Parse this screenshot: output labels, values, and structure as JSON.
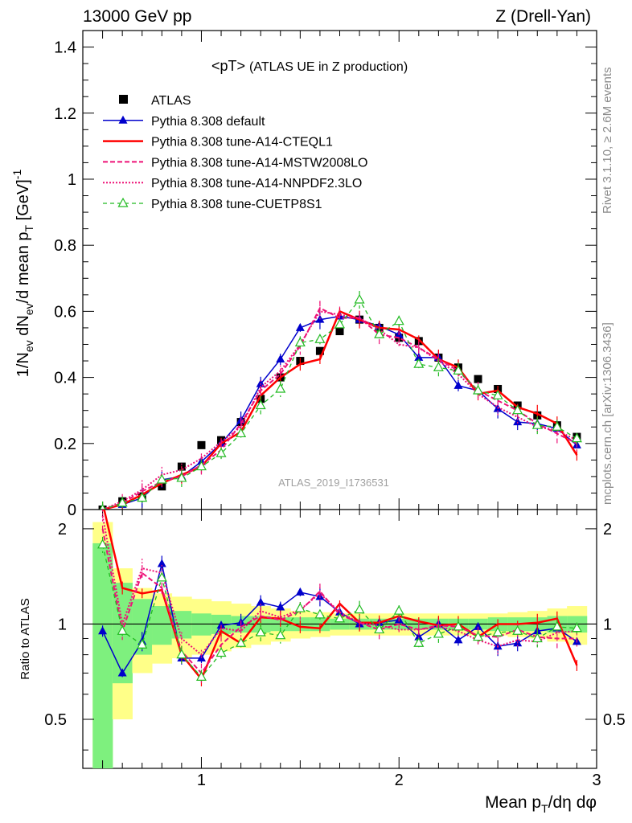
{
  "header": {
    "left": "13000 GeV pp",
    "right": "Z (Drell-Yan)"
  },
  "side_labels": {
    "top": "Rivet 3.1.10, ≥ 2.6M events",
    "bottom": "mcplots.cern.ch [arXiv:1306.3436]"
  },
  "analysis_id": "ATLAS_2019_I1736531",
  "colors": {
    "data": "#000000",
    "default": "#0000cc",
    "a14_cteql1": "#ff0000",
    "a14_pink": "#ee1177",
    "cuetp8s1": "#22bb22",
    "band_green": "#7ef07e",
    "band_yellow": "#ffff88"
  },
  "chart_data": [
    {
      "type": "line",
      "title_main": "<pT>",
      "title_sub": "(ATLAS UE in Z production)",
      "ylabel": "1/N_ev dN_ev/d mean p_T [GeV]^-1",
      "xlim": [
        0.4,
        3.0
      ],
      "ylim": [
        0,
        1.45
      ],
      "yticks": [
        "0",
        "0.2",
        "0.4",
        "0.6",
        "0.8",
        "1",
        "1.2",
        "1.4"
      ],
      "legend_position": "top-left",
      "x": [
        0.5,
        0.6,
        0.7,
        0.8,
        0.9,
        1.0,
        1.1,
        1.2,
        1.3,
        1.4,
        1.5,
        1.6,
        1.7,
        1.8,
        1.9,
        2.0,
        2.1,
        2.2,
        2.3,
        2.4,
        2.5,
        2.6,
        2.7,
        2.8,
        2.9
      ],
      "series": [
        {
          "name": "ATLAS",
          "style": "data",
          "values": [
            0.0,
            0.025,
            0.04,
            0.07,
            0.13,
            0.195,
            0.21,
            0.265,
            0.335,
            0.4,
            0.45,
            0.48,
            0.54,
            0.575,
            0.55,
            0.52,
            0.51,
            0.46,
            0.43,
            0.395,
            0.365,
            0.315,
            0.285,
            0.255,
            0.22
          ]
        },
        {
          "name": "Pythia 8.308 default",
          "style": "default",
          "values": [
            0.0,
            0.015,
            0.035,
            0.09,
            0.1,
            0.145,
            0.2,
            0.27,
            0.38,
            0.455,
            0.55,
            0.575,
            0.585,
            0.575,
            0.555,
            0.53,
            0.46,
            0.46,
            0.375,
            0.36,
            0.305,
            0.265,
            0.26,
            0.245,
            0.195
          ]
        },
        {
          "name": "Pythia 8.308 tune-A14-CTEQL1",
          "style": "cteql1",
          "values": [
            0.0,
            0.015,
            0.045,
            0.08,
            0.105,
            0.13,
            0.2,
            0.235,
            0.345,
            0.4,
            0.44,
            0.455,
            0.6,
            0.575,
            0.55,
            0.545,
            0.515,
            0.455,
            0.43,
            0.35,
            0.36,
            0.31,
            0.29,
            0.26,
            0.165
          ]
        },
        {
          "name": "Pythia 8.308 tune-A14-MSTW2008LO",
          "style": "mstw",
          "values": [
            0.0,
            0.02,
            0.055,
            0.085,
            0.1,
            0.135,
            0.18,
            0.26,
            0.36,
            0.41,
            0.495,
            0.61,
            0.58,
            0.58,
            0.53,
            0.52,
            0.49,
            0.455,
            0.42,
            0.36,
            0.33,
            0.3,
            0.26,
            0.23,
            0.2
          ]
        },
        {
          "name": "Pythia 8.308 tune-A14-NNPDF2.3LO",
          "style": "nnpdf",
          "values": [
            0.0,
            0.025,
            0.06,
            0.105,
            0.12,
            0.155,
            0.205,
            0.25,
            0.37,
            0.42,
            0.5,
            0.6,
            0.59,
            0.58,
            0.545,
            0.5,
            0.49,
            0.45,
            0.41,
            0.35,
            0.31,
            0.28,
            0.25,
            0.24,
            0.21
          ]
        },
        {
          "name": "Pythia 8.308 tune-CUETP8S1",
          "style": "cuetp8s1",
          "values": [
            0.0,
            0.02,
            0.035,
            0.09,
            0.095,
            0.13,
            0.17,
            0.23,
            0.315,
            0.365,
            0.505,
            0.515,
            0.56,
            0.635,
            0.53,
            0.57,
            0.44,
            0.43,
            0.42,
            0.36,
            0.345,
            0.3,
            0.255,
            0.25,
            0.215
          ]
        }
      ]
    },
    {
      "type": "line",
      "ylabel": "Ratio to ATLAS",
      "xlabel": "Mean p_T/dη dφ",
      "xlim": [
        0.4,
        3.0
      ],
      "ylim": [
        0.35,
        2.3
      ],
      "log_y": true,
      "yticks": [
        "0.5",
        "1",
        "2"
      ],
      "xticks": [
        "1",
        "2",
        "3"
      ],
      "x": [
        0.5,
        0.6,
        0.7,
        0.8,
        0.9,
        1.0,
        1.1,
        1.2,
        1.3,
        1.4,
        1.5,
        1.6,
        1.7,
        1.8,
        1.9,
        2.0,
        2.1,
        2.2,
        2.3,
        2.4,
        2.5,
        2.6,
        2.7,
        2.8,
        2.9
      ],
      "bands": {
        "stat_half_width": [
          0.8,
          0.35,
          0.2,
          0.14,
          0.1,
          0.08,
          0.07,
          0.06,
          0.06,
          0.05,
          0.05,
          0.05,
          0.04,
          0.04,
          0.04,
          0.04,
          0.04,
          0.04,
          0.04,
          0.04,
          0.05,
          0.05,
          0.05,
          0.06,
          0.06
        ],
        "total_half_width": [
          1.1,
          0.5,
          0.3,
          0.25,
          0.22,
          0.2,
          0.18,
          0.16,
          0.14,
          0.12,
          0.1,
          0.09,
          0.08,
          0.08,
          0.08,
          0.08,
          0.08,
          0.08,
          0.08,
          0.08,
          0.08,
          0.09,
          0.1,
          0.12,
          0.14
        ]
      },
      "series": [
        {
          "name": "Pythia 8.308 default",
          "style": "default",
          "values": [
            0.95,
            0.7,
            0.88,
            1.55,
            0.78,
            0.78,
            0.99,
            1.01,
            1.17,
            1.13,
            1.26,
            1.22,
            1.09,
            1.0,
            1.01,
            1.03,
            0.91,
            1.0,
            0.89,
            0.98,
            0.85,
            0.87,
            0.95,
            0.97,
            0.88
          ]
        },
        {
          "name": "Pythia 8.308 tune-A14-CTEQL1",
          "style": "cteql1",
          "values": [
            2.6,
            1.3,
            1.25,
            1.28,
            0.8,
            0.67,
            0.95,
            0.87,
            1.05,
            1.04,
            0.98,
            0.97,
            1.16,
            1.01,
            1.01,
            1.06,
            1.02,
            0.99,
            1.0,
            0.91,
            1.0,
            1.0,
            1.01,
            1.04,
            0.74
          ]
        },
        {
          "name": "Pythia 8.308 tune-A14-MSTW2008LO",
          "style": "mstw",
          "values": [
            2.0,
            0.95,
            1.45,
            1.3,
            0.82,
            0.7,
            0.86,
            0.98,
            1.06,
            1.03,
            1.1,
            1.27,
            1.07,
            1.01,
            0.96,
            1.0,
            0.96,
            0.99,
            0.98,
            0.92,
            0.91,
            0.96,
            0.91,
            0.9,
            0.9
          ]
        },
        {
          "name": "Pythia 8.308 tune-A14-NNPDF2.3LO",
          "style": "nnpdf",
          "values": [
            2.2,
            1.0,
            1.5,
            1.45,
            0.9,
            0.8,
            0.97,
            0.95,
            1.1,
            1.05,
            1.11,
            1.25,
            1.09,
            1.01,
            0.99,
            0.96,
            0.96,
            0.98,
            0.95,
            0.89,
            0.85,
            0.89,
            0.88,
            0.94,
            0.95
          ]
        },
        {
          "name": "Pythia 8.308 tune-CUETP8S1",
          "style": "cuetp8s1",
          "values": [
            1.78,
            0.95,
            0.86,
            1.4,
            0.8,
            0.68,
            0.81,
            0.87,
            0.94,
            0.92,
            1.12,
            1.07,
            1.04,
            1.11,
            0.96,
            1.1,
            0.87,
            0.93,
            0.98,
            0.91,
            0.94,
            0.95,
            0.9,
            0.98,
            0.97
          ]
        }
      ]
    }
  ]
}
